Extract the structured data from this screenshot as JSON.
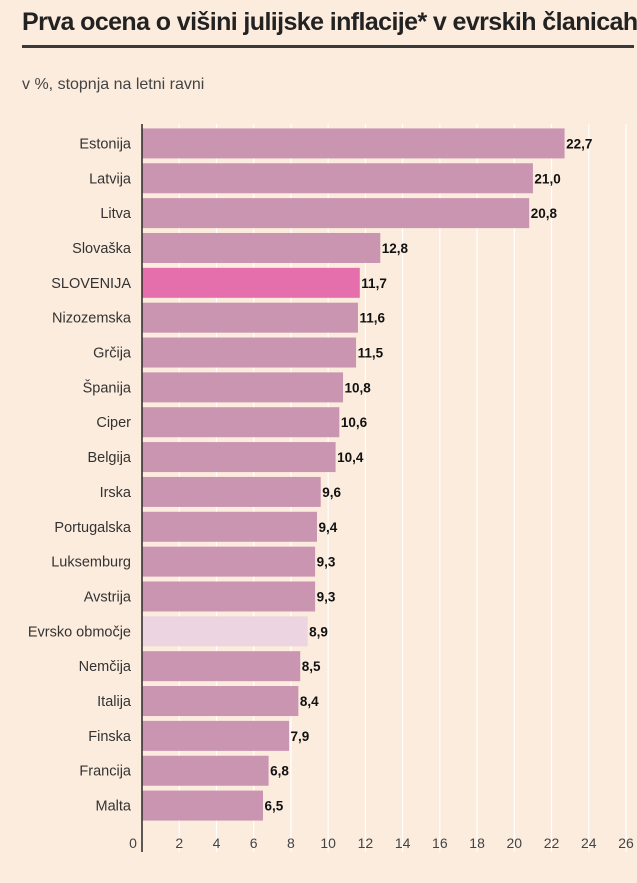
{
  "header": {
    "title": "Prva ocena o višini julijske inflacije* v evrskih članicah",
    "subtitle": "v %, stopnja na letni ravni"
  },
  "colors": {
    "background": "#fcecde",
    "bar_default": "#c995b1",
    "bar_highlight": "#e56fac",
    "bar_euro_area": "#ecd4e0",
    "grid": "#ffffff",
    "axis": "#333333"
  },
  "chart_data": {
    "type": "bar",
    "orientation": "horizontal",
    "categories": [
      "Estonija",
      "Latvija",
      "Litva",
      "Slovaška",
      "SLOVENIJA",
      "Nizozemska",
      "Grčija",
      "Španija",
      "Ciper",
      "Belgija",
      "Irska",
      "Portugalska",
      "Luksemburg",
      "Avstrija",
      "Evrsko območje",
      "Nemčija",
      "Italija",
      "Finska",
      "Francija",
      "Malta"
    ],
    "values": [
      22.7,
      21.0,
      20.8,
      12.8,
      11.7,
      11.6,
      11.5,
      10.8,
      10.6,
      10.4,
      9.6,
      9.4,
      9.3,
      9.3,
      8.9,
      8.5,
      8.4,
      7.9,
      6.8,
      6.5
    ],
    "value_labels": [
      "22,7",
      "21,0",
      "20,8",
      "12,8",
      "11,7",
      "11,6",
      "11,5",
      "10,8",
      "10,6",
      "10,4",
      "9,6",
      "9,4",
      "9,3",
      "9,3",
      "8,9",
      "8,5",
      "8,4",
      "7,9",
      "6,8",
      "6,5"
    ],
    "highlight": {
      "SLOVENIJA": "bar_highlight",
      "Evrsko območje": "bar_euro_area"
    },
    "title": "Prva ocena o višini julijske inflacije* v evrskih članicah",
    "subtitle": "v %, stopnja na letni ravni",
    "xlim": [
      0,
      26
    ],
    "xticks": [
      0,
      2,
      4,
      6,
      8,
      10,
      12,
      14,
      16,
      18,
      20,
      22,
      24,
      26
    ],
    "grid": true,
    "legend": "none"
  }
}
